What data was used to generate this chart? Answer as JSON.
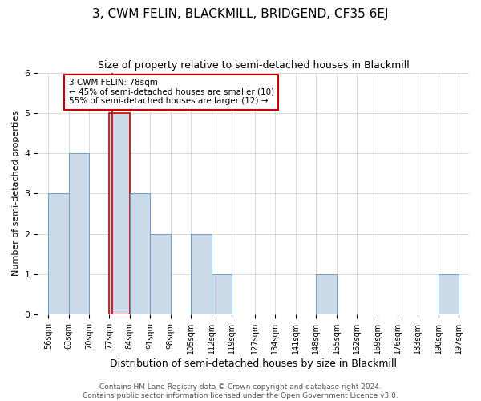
{
  "title": "3, CWM FELIN, BLACKMILL, BRIDGEND, CF35 6EJ",
  "subtitle": "Size of property relative to semi-detached houses in Blackmill",
  "xlabel": "Distribution of semi-detached houses by size in Blackmill",
  "ylabel": "Number of semi-detached properties",
  "bin_edges": [
    56,
    63,
    70,
    77,
    84,
    91,
    98,
    105,
    112,
    119,
    127,
    134,
    141,
    148,
    155,
    162,
    169,
    176,
    183,
    190,
    197
  ],
  "bin_labels": [
    "56sqm",
    "63sqm",
    "70sqm",
    "77sqm",
    "84sqm",
    "91sqm",
    "98sqm",
    "105sqm",
    "112sqm",
    "119sqm",
    "127sqm",
    "134sqm",
    "141sqm",
    "148sqm",
    "155sqm",
    "162sqm",
    "169sqm",
    "176sqm",
    "183sqm",
    "190sqm",
    "197sqm"
  ],
  "counts": [
    3,
    4,
    0,
    5,
    3,
    2,
    0,
    2,
    1,
    0,
    0,
    0,
    0,
    1,
    0,
    0,
    0,
    0,
    0,
    1
  ],
  "bin_width": 7,
  "property_value": 78,
  "property_bin_index": 3,
  "bar_color": "#ccd9e8",
  "bar_edge_color": "#6a9fc0",
  "highlight_bar_edge_color": "#cc0000",
  "annotation_box_text": "3 CWM FELIN: 78sqm\n← 45% of semi-detached houses are smaller (10)\n55% of semi-detached houses are larger (12) →",
  "annotation_box_edge_color": "#cc0000",
  "annotation_box_facecolor": "#ffffff",
  "ylim": [
    0,
    6
  ],
  "yticks": [
    0,
    1,
    2,
    3,
    4,
    5,
    6
  ],
  "footer_text": "Contains HM Land Registry data © Crown copyright and database right 2024.\nContains public sector information licensed under the Open Government Licence v3.0.",
  "title_fontsize": 11,
  "subtitle_fontsize": 9,
  "xlabel_fontsize": 9,
  "ylabel_fontsize": 8,
  "footer_fontsize": 6.5
}
